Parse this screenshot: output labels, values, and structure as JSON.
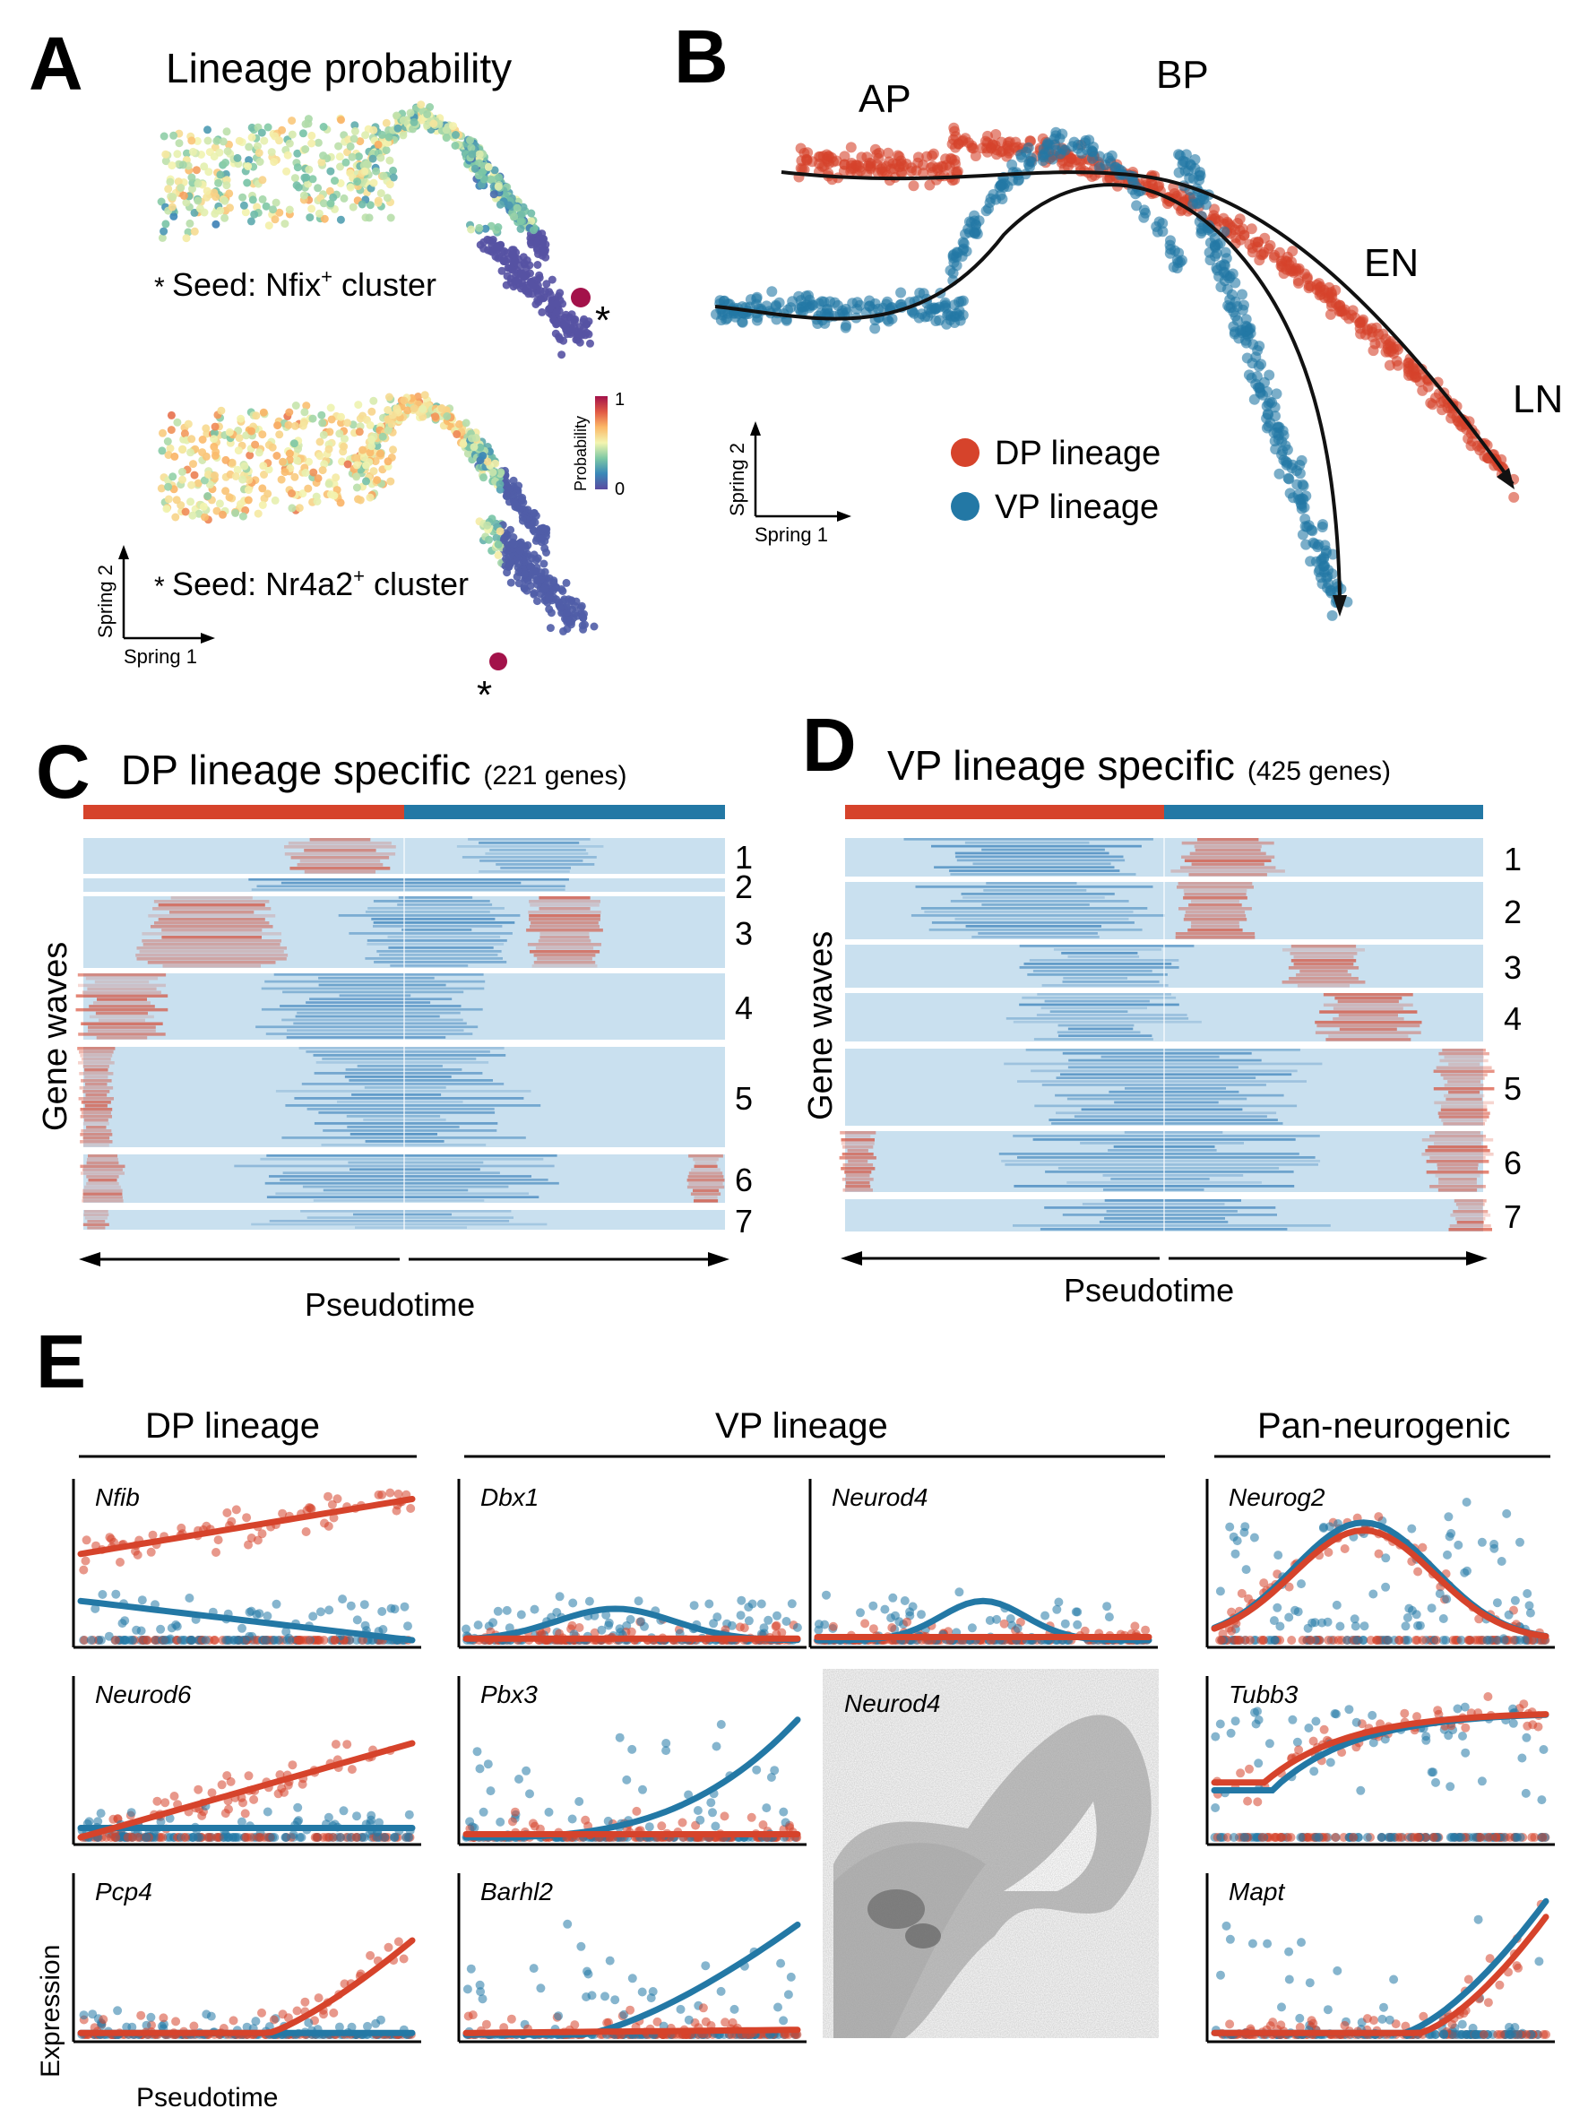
{
  "colors": {
    "dp": "#d6432b",
    "vp": "#2378a5",
    "heat_bg": "#c9e0ef",
    "heat_hi": "#d6432b",
    "heat_lo": "#2d78b5",
    "prob_scale": [
      "#5a4ba0",
      "#3a88b8",
      "#7cc7a5",
      "#f3f5b0",
      "#fbb767",
      "#e15a45",
      "#a3124a"
    ]
  },
  "panel_a": {
    "letter": "A",
    "title": "Lineage probability",
    "seed1_prefix": "* ",
    "seed1": "Seed: Nfix",
    "seed1_sup": "+",
    "seed1_suffix": " cluster",
    "seed2_prefix": "* ",
    "seed2": "Seed: Nr4a2",
    "seed2_sup": "+",
    "seed2_suffix": " cluster",
    "star": "*",
    "colorbar_label": "Probability",
    "colorbar_max": "1",
    "colorbar_min": "0",
    "axis_y": "Spring 2",
    "axis_x": "Spring 1"
  },
  "panel_b": {
    "letter": "B",
    "labels": [
      "AP",
      "BP",
      "EN",
      "LN"
    ],
    "legend": [
      "DP lineage",
      "VP lineage"
    ],
    "axis_y": "Spring 2",
    "axis_x": "Spring 1"
  },
  "panel_c": {
    "letter": "C",
    "title": "DP lineage specific",
    "subtitle": "(221 genes)",
    "ylabel": "Gene waves",
    "xlabel": "Pseudotime",
    "waves": [
      "1",
      "2",
      "3",
      "4",
      "5",
      "6",
      "7"
    ]
  },
  "panel_d": {
    "letter": "D",
    "title": "VP lineage specific",
    "subtitle": "(425 genes)",
    "ylabel": "Gene waves",
    "xlabel": "Pseudotime",
    "waves": [
      "1",
      "2",
      "3",
      "4",
      "5",
      "6",
      "7"
    ]
  },
  "panel_e": {
    "letter": "E",
    "group_dp": "DP lineage",
    "group_vp": "VP lineage",
    "group_pan": "Pan-neurogenic",
    "ylabel": "Expression",
    "xlabel": "Pseudotime",
    "ish_label": "Neurod4",
    "genes": [
      "Nfib",
      "Neurod6",
      "Pcp4",
      "Dbx1",
      "Neurod4",
      "Pbx3",
      "Barhl2",
      "Neurog2",
      "Tubb3",
      "Mapt"
    ]
  }
}
